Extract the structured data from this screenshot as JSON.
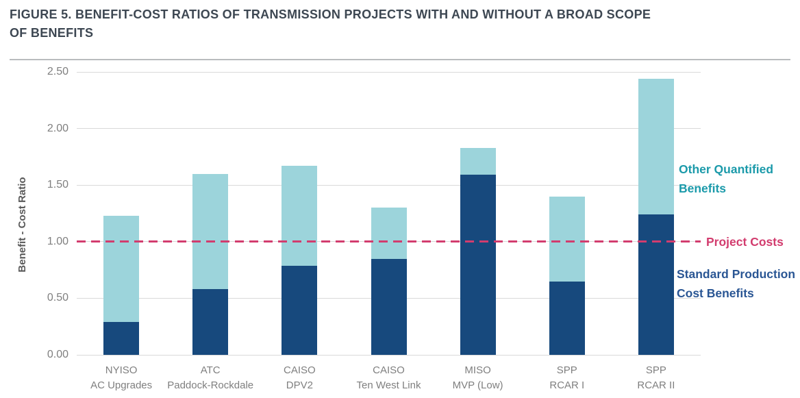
{
  "title_lines": [
    "FIGURE 5. BENEFIT-COST RATIOS OF TRANSMISSION PROJECTS WITH AND WITHOUT A BROAD SCOPE",
    "OF BENEFITS"
  ],
  "colors": {
    "standard_bar": "#17497d",
    "other_bar": "#9cd4db",
    "reference_line": "#d23c6e",
    "other_text": "#1b9aaa",
    "standard_text": "#2a5694",
    "reference_text": "#d23c6e",
    "grid": "#d9d9d9",
    "tick_text": "#7f7f7f",
    "title_text": "#3d4752"
  },
  "chart_data": {
    "type": "bar",
    "stacked": true,
    "title": "FIGURE 5. BENEFIT-COST RATIOS OF TRANSMISSION PROJECTS WITH AND WITHOUT A BROAD SCOPE OF BENEFITS",
    "ylabel": "Benefit - Cost Ratio",
    "ylim": [
      0,
      2.5
    ],
    "ytick_step": 0.5,
    "yticks": [
      "0.00",
      "0.50",
      "1.00",
      "1.50",
      "2.00",
      "2.50"
    ],
    "grid": true,
    "categories": [
      "NYISO\nAC Upgrades",
      "ATC\nPaddock-Rockdale",
      "CAISO\nDPV2",
      "CAISO\nTen West Link",
      "MISO\nMVP (Low)",
      "SPP\nRCAR I",
      "SPP\nRCAR II"
    ],
    "series": [
      {
        "name": "Standard Production Cost Benefits",
        "values": [
          0.29,
          0.58,
          0.79,
          0.85,
          1.59,
          0.65,
          1.24
        ]
      },
      {
        "name": "Other Quantified Benefits",
        "values": [
          0.94,
          1.02,
          0.88,
          0.45,
          0.24,
          0.75,
          1.2
        ]
      }
    ],
    "totals": [
      1.23,
      1.6,
      1.67,
      1.3,
      1.83,
      1.4,
      2.44
    ],
    "reference_line": {
      "label": "Project Costs",
      "value": 1.0
    },
    "legend_position": "right-annotations",
    "annotations": {
      "other": "Other Quantified\nBenefits",
      "reference": "Project Costs",
      "standard": "Standard Production\nCost Benefits"
    }
  }
}
